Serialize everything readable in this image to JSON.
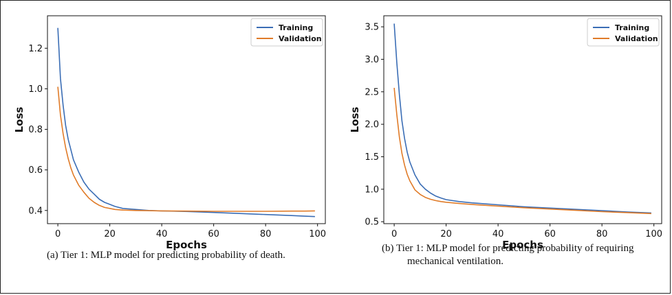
{
  "chart_data": [
    {
      "type": "line",
      "xlabel": "Epochs",
      "ylabel": "Loss",
      "xlim": [
        -4,
        103
      ],
      "ylim": [
        0.335,
        1.36
      ],
      "xticks": [
        0,
        20,
        40,
        60,
        80,
        100
      ],
      "yticks": [
        0.4,
        0.6,
        0.8,
        1.0,
        1.2
      ],
      "ytick_labels": [
        "0.4",
        "0.6",
        "0.8",
        "1.0",
        "1.2"
      ],
      "legend": "top-right",
      "grid": false,
      "series": [
        {
          "name": "Training",
          "color": "#3a6db5",
          "x": [
            0,
            1,
            2,
            3,
            4,
            5,
            6,
            8,
            10,
            12,
            14,
            16,
            18,
            20,
            22,
            25,
            30,
            35,
            40,
            50,
            60,
            70,
            80,
            90,
            95,
            99
          ],
          "y": [
            1.3,
            1.05,
            0.92,
            0.82,
            0.75,
            0.7,
            0.65,
            0.59,
            0.54,
            0.505,
            0.48,
            0.455,
            0.44,
            0.43,
            0.42,
            0.41,
            0.405,
            0.4,
            0.398,
            0.395,
            0.39,
            0.385,
            0.38,
            0.375,
            0.372,
            0.37
          ]
        },
        {
          "name": "Validation",
          "color": "#e07b28",
          "x": [
            0,
            1,
            2,
            3,
            4,
            5,
            6,
            8,
            10,
            12,
            14,
            16,
            18,
            20,
            22,
            25,
            30,
            35,
            40,
            50,
            60,
            70,
            80,
            90,
            95,
            99
          ],
          "y": [
            1.01,
            0.87,
            0.78,
            0.71,
            0.655,
            0.61,
            0.575,
            0.525,
            0.49,
            0.46,
            0.44,
            0.425,
            0.415,
            0.41,
            0.405,
            0.402,
            0.4,
            0.399,
            0.398,
            0.397,
            0.396,
            0.396,
            0.396,
            0.397,
            0.397,
            0.398
          ]
        }
      ]
    },
    {
      "type": "line",
      "xlabel": "Epochs",
      "ylabel": "Loss",
      "xlim": [
        -4,
        103
      ],
      "ylim": [
        0.47,
        3.67
      ],
      "xticks": [
        0,
        20,
        40,
        60,
        80,
        100
      ],
      "yticks": [
        0.5,
        1.0,
        1.5,
        2.0,
        2.5,
        3.0,
        3.5
      ],
      "ytick_labels": [
        "0.5",
        "1.0",
        "1.5",
        "2.0",
        "2.5",
        "3.0",
        "3.5"
      ],
      "legend": "top-right",
      "grid": false,
      "series": [
        {
          "name": "Training",
          "color": "#3a6db5",
          "x": [
            0,
            1,
            2,
            3,
            4,
            5,
            6,
            8,
            10,
            12,
            14,
            16,
            18,
            20,
            25,
            30,
            40,
            50,
            60,
            70,
            80,
            90,
            99
          ],
          "y": [
            3.55,
            2.95,
            2.45,
            2.05,
            1.78,
            1.57,
            1.42,
            1.22,
            1.08,
            1.0,
            0.94,
            0.895,
            0.865,
            0.84,
            0.81,
            0.79,
            0.76,
            0.73,
            0.71,
            0.69,
            0.67,
            0.65,
            0.635
          ]
        },
        {
          "name": "Validation",
          "color": "#e07b28",
          "x": [
            0,
            1,
            2,
            3,
            4,
            5,
            6,
            8,
            10,
            12,
            14,
            16,
            18,
            20,
            25,
            30,
            40,
            50,
            60,
            70,
            80,
            90,
            99
          ],
          "y": [
            2.56,
            2.15,
            1.8,
            1.55,
            1.37,
            1.23,
            1.13,
            0.99,
            0.92,
            0.875,
            0.845,
            0.825,
            0.81,
            0.8,
            0.78,
            0.765,
            0.74,
            0.715,
            0.695,
            0.675,
            0.655,
            0.64,
            0.625
          ]
        }
      ]
    }
  ],
  "captions": [
    {
      "lines": [
        "(a)  Tier 1: MLP model for predicting probability of death."
      ]
    },
    {
      "lines": [
        "(b)  Tier 1: MLP model for predicting probability of requiring",
        "mechanical ventilation."
      ]
    }
  ]
}
